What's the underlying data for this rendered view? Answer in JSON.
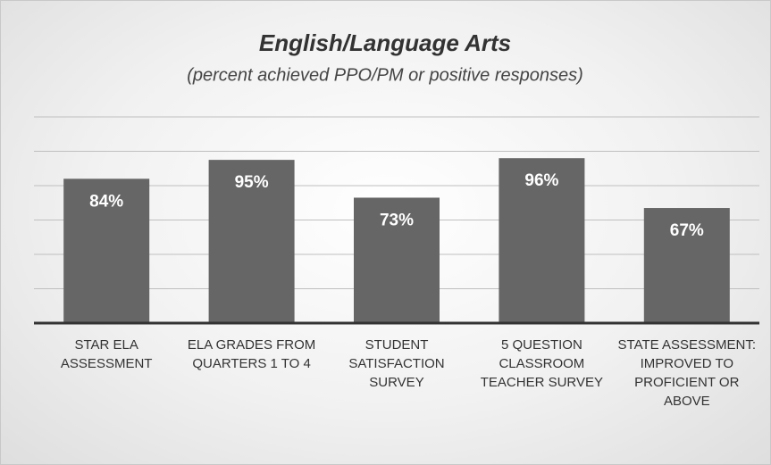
{
  "chart_data": {
    "type": "bar",
    "title": "English/Language Arts",
    "subtitle": "(percent achieved PPO/PM or positive responses)",
    "categories": [
      "STAR ELA ASSESSMENT",
      "ELA GRADES FROM QUARTERS 1 TO 4",
      "STUDENT SATISFACTION SURVEY",
      "5 QUESTION CLASSROOM TEACHER SURVEY",
      "STATE ASSESSMENT: IMPROVED TO PROFICIENT OR ABOVE"
    ],
    "values": [
      84,
      95,
      73,
      96,
      67
    ],
    "value_labels": [
      "84%",
      "95%",
      "73%",
      "96%",
      "67%"
    ],
    "color": "#666666",
    "ylim": [
      0,
      120
    ],
    "yticks": [
      0,
      20,
      40,
      60,
      80,
      100,
      120
    ],
    "grid": true
  }
}
